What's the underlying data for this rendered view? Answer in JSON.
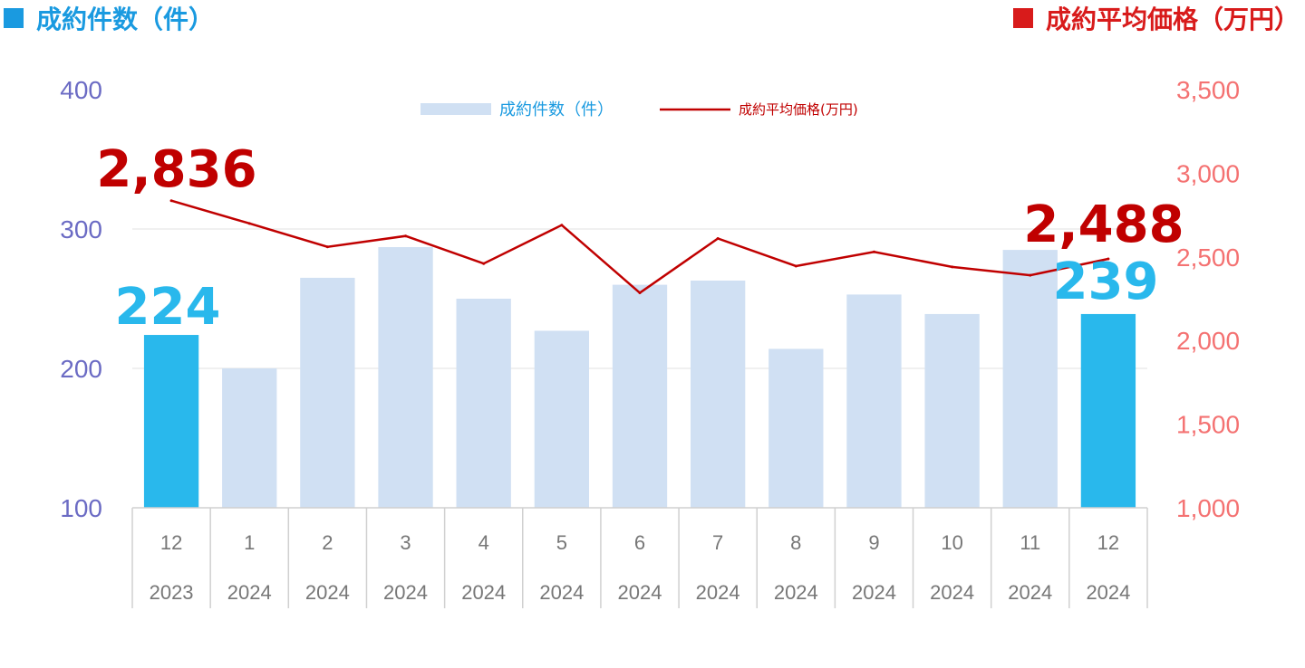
{
  "header": {
    "left": {
      "label": "成約件数（件）",
      "color": "#1a9ae0",
      "marker": "square-marker"
    },
    "right": {
      "label": "成約平均価格（万円）",
      "color": "#d81b1b",
      "marker": "square-marker"
    }
  },
  "chart_data": {
    "type": "bar",
    "categories": [
      {
        "month": "12",
        "year": "2023"
      },
      {
        "month": "1",
        "year": "2024"
      },
      {
        "month": "2",
        "year": "2024"
      },
      {
        "month": "3",
        "year": "2024"
      },
      {
        "month": "4",
        "year": "2024"
      },
      {
        "month": "5",
        "year": "2024"
      },
      {
        "month": "6",
        "year": "2024"
      },
      {
        "month": "7",
        "year": "2024"
      },
      {
        "month": "8",
        "year": "2024"
      },
      {
        "month": "9",
        "year": "2024"
      },
      {
        "month": "10",
        "year": "2024"
      },
      {
        "month": "11",
        "year": "2024"
      },
      {
        "month": "12",
        "year": "2024"
      }
    ],
    "series": [
      {
        "name": "成約件数（件）",
        "type": "bar",
        "axis": "left",
        "color": "#d0e0f3",
        "highlight_color": "#29b8ec",
        "highlight_indices": [
          0,
          12
        ],
        "values": [
          224,
          200,
          265,
          287,
          250,
          227,
          260,
          263,
          214,
          253,
          239,
          285,
          239
        ]
      },
      {
        "name": "成約平均価格(万円)",
        "type": "line",
        "axis": "right",
        "color": "#c00000",
        "values": [
          2836,
          2700,
          2560,
          2625,
          2460,
          2690,
          2285,
          2610,
          2445,
          2530,
          2440,
          2390,
          2488
        ]
      }
    ],
    "y_left": {
      "lim": [
        100,
        400
      ],
      "ticks": [
        "100",
        "200",
        "300",
        "400"
      ],
      "color": "#6b6bc4"
    },
    "y_right": {
      "lim": [
        1000,
        3500
      ],
      "ticks": [
        "1,000",
        "1,500",
        "2,000",
        "2,500",
        "3,000",
        "3,500"
      ],
      "color": "#f47272"
    },
    "gridlines": [
      200,
      300
    ],
    "legend": {
      "placement": "top-center",
      "bar_label": "成約件数（件）",
      "line_label": "成約平均価格(万円)"
    },
    "annotations": [
      {
        "text": "2,836",
        "series": "line",
        "index": 0,
        "color": "#c00000"
      },
      {
        "text": "2,488",
        "series": "line",
        "index": 12,
        "color": "#c00000"
      },
      {
        "text": "224",
        "series": "bar",
        "index": 0,
        "color": "#29b8ec"
      },
      {
        "text": "239",
        "series": "bar",
        "index": 12,
        "color": "#29b8ec"
      }
    ]
  }
}
